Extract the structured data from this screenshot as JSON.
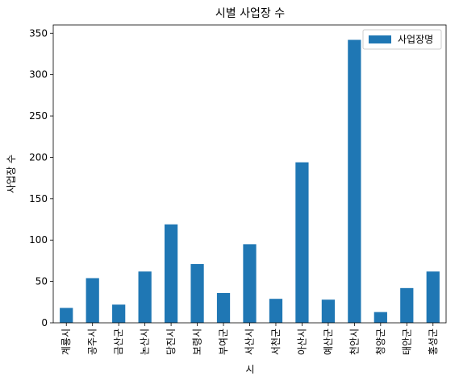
{
  "chart_data": {
    "type": "bar",
    "title": "시별 사업장 수",
    "xlabel": "시",
    "ylabel": "사업장 수",
    "categories": [
      "계룡시",
      "공주시",
      "금산군",
      "논산시",
      "당진시",
      "보령시",
      "부여군",
      "서산시",
      "서천군",
      "아산시",
      "예산군",
      "천안시",
      "청양군",
      "태안군",
      "홍성군"
    ],
    "series": [
      {
        "name": "사업장명",
        "values": [
          18,
          54,
          22,
          62,
          119,
          71,
          36,
          95,
          29,
          194,
          28,
          342,
          13,
          42,
          62
        ]
      }
    ],
    "ylim": [
      0,
      360
    ],
    "yticks": [
      0,
      50,
      100,
      150,
      200,
      250,
      300,
      350
    ],
    "grid": false,
    "legend": "top-right",
    "bar_color": "#1f77b4"
  }
}
